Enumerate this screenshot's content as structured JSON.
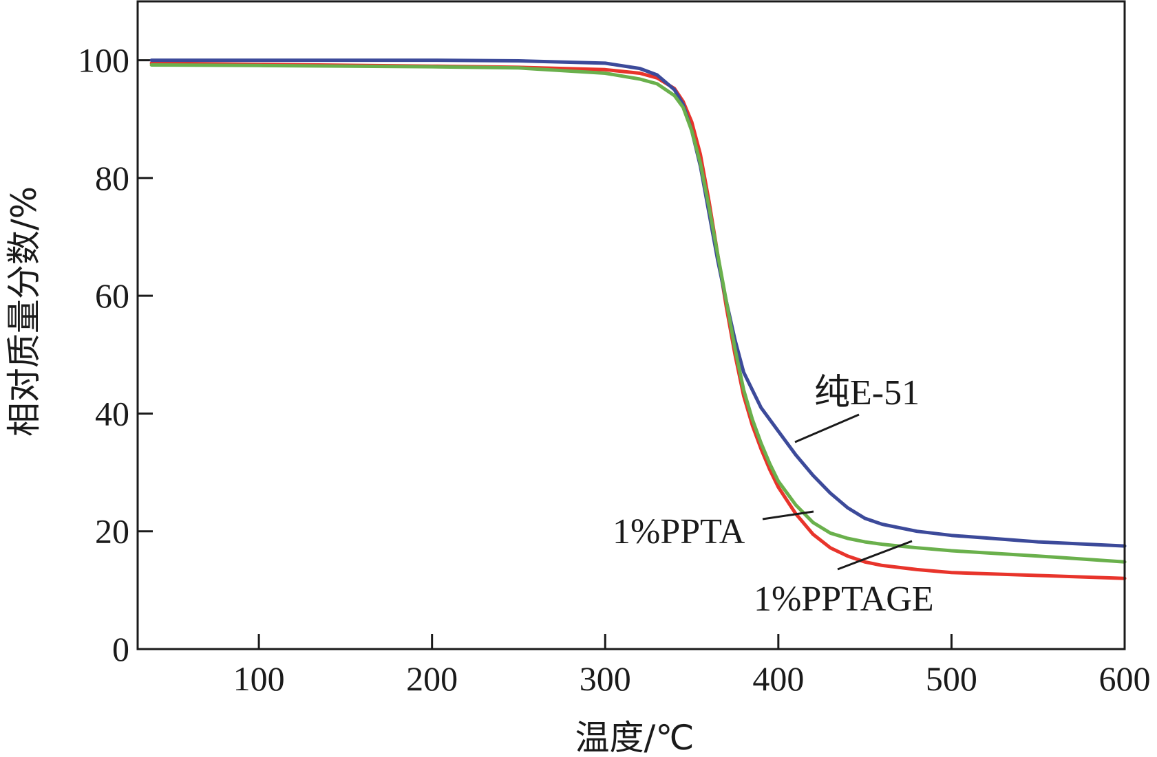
{
  "chart_data": {
    "type": "line",
    "title": "",
    "xlabel": "温度/℃",
    "ylabel": "相对质量分数/%",
    "xlim": [
      30,
      600
    ],
    "ylim": [
      0,
      110
    ],
    "xticks": [
      100,
      200,
      300,
      400,
      500,
      600
    ],
    "yticks": [
      0,
      20,
      40,
      60,
      80,
      100
    ],
    "grid": false,
    "series": [
      {
        "name": "1%PPTA",
        "color": "#e8342b",
        "x": [
          38,
          100,
          200,
          250,
          300,
          320,
          330,
          340,
          345,
          350,
          355,
          360,
          365,
          370,
          375,
          380,
          385,
          390,
          395,
          400,
          410,
          420,
          430,
          440,
          450,
          460,
          480,
          500,
          550,
          600
        ],
        "y": [
          99.5,
          99.3,
          99.0,
          98.8,
          98.4,
          97.8,
          97.0,
          95.2,
          93.0,
          89.5,
          84.0,
          76.0,
          67.0,
          58.0,
          50.0,
          43.0,
          38.0,
          34.0,
          30.5,
          27.5,
          23.0,
          19.5,
          17.2,
          15.8,
          14.8,
          14.2,
          13.5,
          13.0,
          12.5,
          12.0
        ]
      },
      {
        "name": "纯E-51",
        "color": "#3c4a9a",
        "x": [
          38,
          100,
          200,
          250,
          300,
          320,
          330,
          340,
          345,
          350,
          355,
          360,
          365,
          370,
          375,
          380,
          385,
          390,
          400,
          410,
          420,
          430,
          440,
          450,
          460,
          480,
          500,
          550,
          600
        ],
        "y": [
          100.0,
          100.0,
          100.0,
          99.9,
          99.5,
          98.6,
          97.5,
          95.0,
          92.5,
          88.0,
          82.0,
          74.0,
          66.0,
          59.0,
          52.5,
          47.0,
          44.0,
          41.0,
          37.0,
          33.0,
          29.5,
          26.5,
          24.0,
          22.2,
          21.2,
          20.0,
          19.3,
          18.2,
          17.5
        ]
      },
      {
        "name": "1%PPTAGE",
        "color": "#6ab04c",
        "x": [
          38,
          100,
          200,
          250,
          300,
          320,
          330,
          340,
          345,
          350,
          355,
          360,
          365,
          370,
          375,
          380,
          385,
          390,
          395,
          400,
          410,
          420,
          430,
          440,
          450,
          460,
          480,
          500,
          550,
          600
        ],
        "y": [
          99.2,
          99.1,
          98.9,
          98.7,
          97.8,
          96.8,
          96.0,
          94.0,
          92.0,
          88.0,
          82.5,
          75.0,
          67.0,
          59.0,
          51.0,
          44.0,
          39.0,
          35.0,
          31.5,
          28.5,
          24.5,
          21.5,
          19.7,
          18.8,
          18.2,
          17.8,
          17.2,
          16.7,
          15.8,
          14.8
        ]
      }
    ],
    "annotations": [
      {
        "label": "纯E-51",
        "series": "纯E-51"
      },
      {
        "label": "1%PPTA",
        "series": "1%PPTA"
      },
      {
        "label": "1%PPTAGE",
        "series": "1%PPTAGE"
      }
    ]
  }
}
